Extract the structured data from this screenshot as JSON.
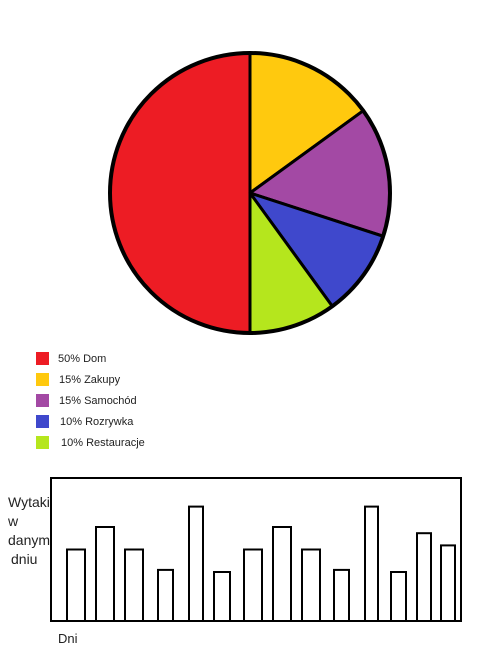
{
  "chart_data": [
    {
      "type": "pie",
      "slices": [
        {
          "label": "Dom",
          "value": 50,
          "text": "50% Dom",
          "color": "#ed1c24"
        },
        {
          "label": "Zakupy",
          "value": 15,
          "text": "15% Zakupy",
          "color": "#ffc90e"
        },
        {
          "label": "Samochód",
          "value": 15,
          "text": "15% Samochód",
          "color": "#a349a4"
        },
        {
          "label": "Rozrywka",
          "value": 10,
          "text": "10% Rozrywka",
          "color": "#3f48cc"
        },
        {
          "label": "Restauracje",
          "value": 10,
          "text": "10% Restauracje",
          "color": "#b5e61d"
        }
      ],
      "legend_position": "bottom-left"
    },
    {
      "type": "bar",
      "ylabel_lines": [
        "Wytaki",
        "w",
        "danym",
        "dniu"
      ],
      "xlabel": "Dni",
      "values": [
        70,
        92,
        70,
        50,
        112,
        48,
        70,
        92,
        70,
        50,
        112,
        48,
        86,
        74
      ],
      "ylim": [
        0,
        140
      ]
    }
  ]
}
